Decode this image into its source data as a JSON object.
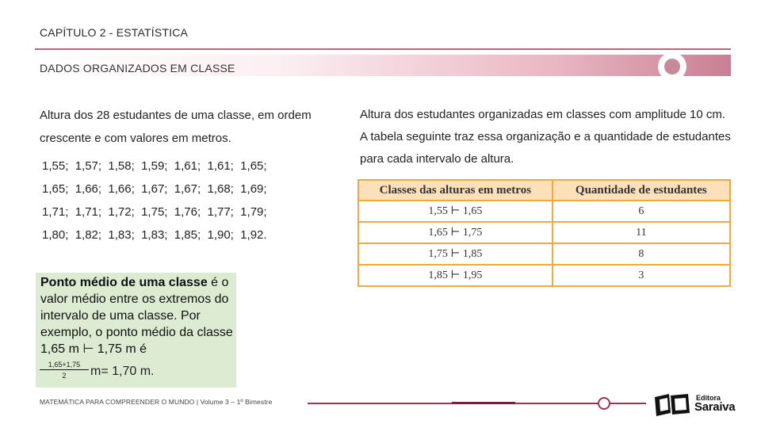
{
  "header": {
    "chapter": "CAPÍTULO 2 - ESTATÍSTICA",
    "section": "DADOS ORGANIZADOS EM CLASSE"
  },
  "left": {
    "paragraph": "Altura dos 28 estudantes de uma classe, em ordem crescente e com valores em metros.",
    "data_lines": [
      "1,55;  1,57;  1,58;  1,59;  1,61;  1,61;  1,65;",
      "1,65;  1,66;  1,66;  1,67;  1,67;  1,68;  1,69;",
      "1,71;  1,71;  1,72;  1,75;  1,76;  1,77;  1,79;",
      "1,80;  1,82;  1,83;  1,83;  1,85;  1,90;  1,92."
    ]
  },
  "definition_box": {
    "term": "Ponto médio de uma classe",
    "text": " é o valor médio entre os extremos do intervalo de uma classe. Por exemplo, o ponto médio da classe 1,65 m ⊢ 1,75 m é",
    "fraction_numerator": "1,65+1,75",
    "fraction_denominator": "2",
    "result": "m= 1,70 m."
  },
  "right": {
    "paragraph": "Altura dos estudantes organizadas em classes com amplitude 10 cm. A tabela seguinte traz essa organização e a quantidade de estudantes para cada intervalo de altura."
  },
  "table": {
    "headers": [
      "Classes das alturas em metros",
      "Quantidade de estudantes"
    ],
    "rows": [
      [
        "1,55 ⊢ 1,65",
        "6"
      ],
      [
        "1,65 ⊢ 1,75",
        "11"
      ],
      [
        "1,75 ⊢ 1,85",
        "8"
      ],
      [
        "1,85 ⊢ 1,95",
        "3"
      ]
    ]
  },
  "footer": {
    "text": "MATEMÁTICA PARA COMPREENDER O MUNDO | Volume 3 – 1º Bimestre",
    "logo_small": "Editora",
    "logo_big": "Saraiva"
  },
  "colors": {
    "accent": "#a0304f",
    "table_border": "#f0a93e",
    "table_header_bg": "#fbe0b9",
    "definition_bg": "#dcebd2"
  }
}
